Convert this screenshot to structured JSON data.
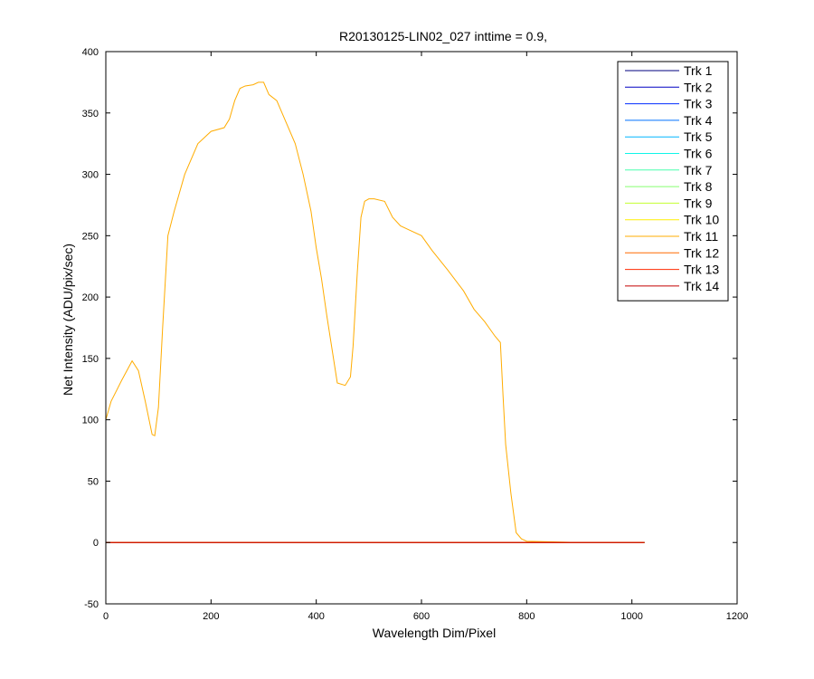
{
  "chart_data": {
    "type": "line",
    "title": "R20130125-LIN02_027 inttime = 0.9,",
    "xlabel": "Wavelength Dim/Pixel",
    "ylabel": "Net Intensity (ADU/pix/sec)",
    "xlim": [
      0,
      1200
    ],
    "ylim": [
      -50,
      400
    ],
    "xticks": [
      0,
      200,
      400,
      600,
      800,
      1000,
      1200
    ],
    "yticks": [
      -50,
      0,
      50,
      100,
      150,
      200,
      250,
      300,
      350,
      400
    ],
    "grid": false,
    "legend_position": "top-right",
    "series": [
      {
        "name": "Trk 1",
        "color": "#00007f",
        "x": [
          0,
          1024
        ],
        "y": [
          0,
          0
        ]
      },
      {
        "name": "Trk 2",
        "color": "#0000c4",
        "x": [
          0,
          1024
        ],
        "y": [
          0,
          0
        ]
      },
      {
        "name": "Trk 3",
        "color": "#002bff",
        "x": [
          0,
          1024
        ],
        "y": [
          0,
          0
        ]
      },
      {
        "name": "Trk 4",
        "color": "#0070ff",
        "x": [
          0,
          1024
        ],
        "y": [
          0,
          0
        ]
      },
      {
        "name": "Trk 5",
        "color": "#00b5ff",
        "x": [
          0,
          1024
        ],
        "y": [
          0,
          0
        ]
      },
      {
        "name": "Trk 6",
        "color": "#0ff5e9",
        "x": [
          0,
          1024
        ],
        "y": [
          0,
          0
        ]
      },
      {
        "name": "Trk 7",
        "color": "#49ffad",
        "x": [
          0,
          1024
        ],
        "y": [
          0,
          0
        ]
      },
      {
        "name": "Trk 8",
        "color": "#87ff70",
        "x": [
          0,
          1024
        ],
        "y": [
          0,
          0
        ]
      },
      {
        "name": "Trk 9",
        "color": "#c5ff31",
        "x": [
          0,
          1024
        ],
        "y": [
          0,
          0
        ]
      },
      {
        "name": "Trk 10",
        "color": "#ffef00",
        "x": [
          0,
          1024
        ],
        "y": [
          0,
          0
        ]
      },
      {
        "name": "Trk 11",
        "color": "#ffac00",
        "x": [
          0,
          10,
          30,
          50,
          62,
          75,
          88,
          93,
          100,
          108,
          118,
          130,
          150,
          175,
          200,
          225,
          235,
          245,
          255,
          265,
          280,
          290,
          300,
          310,
          325,
          345,
          360,
          375,
          390,
          400,
          410,
          420,
          440,
          455,
          465,
          470,
          478,
          485,
          492,
          500,
          510,
          530,
          545,
          560,
          575,
          600,
          620,
          650,
          680,
          700,
          720,
          740,
          750,
          755,
          760,
          770,
          780,
          790,
          800,
          850,
          900,
          950,
          1024
        ],
        "y": [
          100,
          115,
          132,
          148,
          140,
          115,
          88,
          87,
          110,
          175,
          250,
          270,
          300,
          325,
          335,
          338,
          345,
          360,
          370,
          372,
          373,
          375,
          375,
          365,
          360,
          340,
          325,
          300,
          270,
          240,
          215,
          185,
          130,
          128,
          135,
          160,
          220,
          265,
          278,
          280,
          280,
          278,
          265,
          258,
          255,
          250,
          238,
          222,
          205,
          190,
          180,
          168,
          163,
          120,
          80,
          40,
          8,
          3,
          1,
          0.5,
          0,
          0,
          0
        ]
      },
      {
        "name": "Trk 12",
        "color": "#ff6b00",
        "x": [
          0,
          1024
        ],
        "y": [
          0,
          0
        ]
      },
      {
        "name": "Trk 13",
        "color": "#ff2900",
        "x": [
          0,
          1024
        ],
        "y": [
          0,
          0
        ]
      },
      {
        "name": "Trk 14",
        "color": "#c40000",
        "x": [
          0,
          1024
        ],
        "y": [
          0,
          0
        ]
      }
    ]
  }
}
